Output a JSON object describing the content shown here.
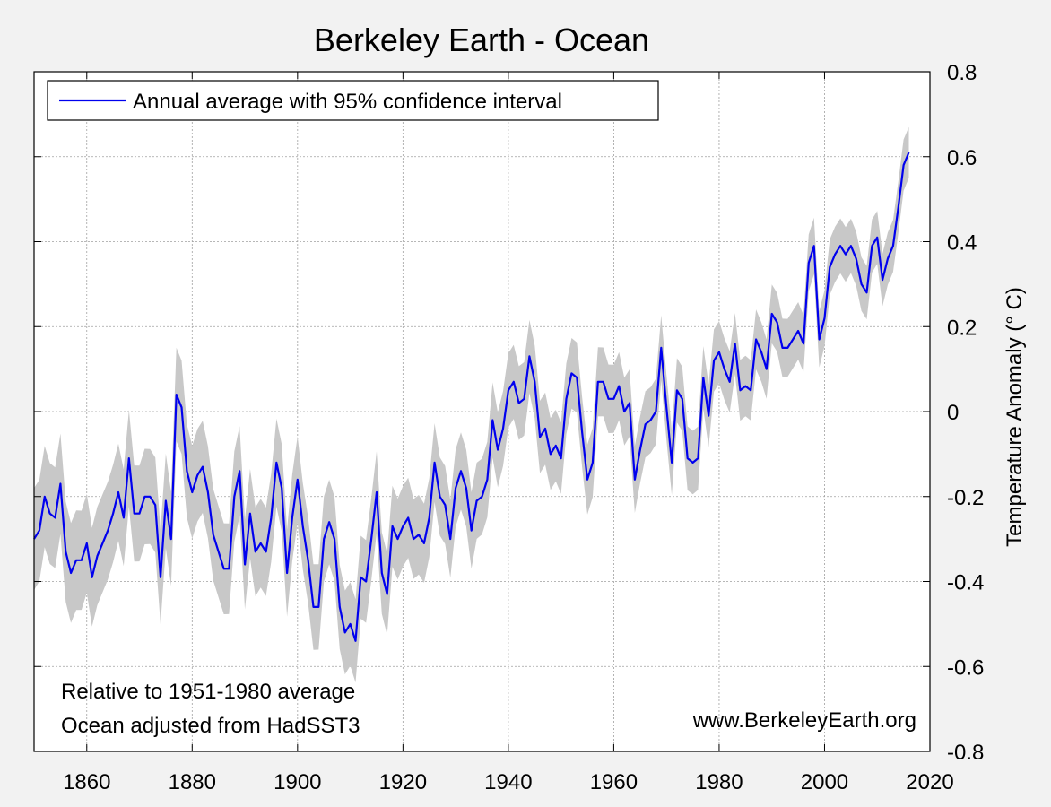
{
  "chart_data": {
    "type": "line",
    "title": "Berkeley Earth - Ocean",
    "xlabel": "",
    "ylabel": "Temperature Anomaly (° C)",
    "xlim": [
      1850,
      2020
    ],
    "ylim": [
      -0.8,
      0.8
    ],
    "x_ticks": [
      1860,
      1880,
      1900,
      1920,
      1940,
      1960,
      1980,
      2000,
      2020
    ],
    "y_ticks": [
      0.8,
      0.6,
      0.4,
      0.2,
      0,
      -0.2,
      -0.4,
      -0.6,
      -0.8
    ],
    "y_tick_labels": [
      "0.8",
      "0.6",
      "0.4",
      "0.2",
      "0",
      "-0.2",
      "-0.4",
      "-0.6",
      "-0.8"
    ],
    "grid": true,
    "legend": {
      "position": "top-left",
      "entries": [
        "Annual average with 95% confidence interval"
      ]
    },
    "annotations": {
      "relative": "Relative to 1951-1980 average",
      "source": "Ocean adjusted from HadSST3",
      "website": "www.BerkeleyEarth.org"
    },
    "colors": {
      "line": "#0000ee",
      "band": "#c8c8c8",
      "plot_bg": "#ffffff",
      "page_bg": "#f2f2f2",
      "grid": "#a0a0a0"
    },
    "series": [
      {
        "name": "Annual average with 95% confidence interval",
        "x_start": 1850,
        "x_step": 1,
        "values": [
          -0.3,
          -0.28,
          -0.2,
          -0.24,
          -0.25,
          -0.17,
          -0.33,
          -0.38,
          -0.35,
          -0.35,
          -0.31,
          -0.39,
          -0.34,
          -0.31,
          -0.28,
          -0.24,
          -0.19,
          -0.25,
          -0.11,
          -0.24,
          -0.24,
          -0.2,
          -0.2,
          -0.22,
          -0.39,
          -0.21,
          -0.3,
          0.04,
          0.01,
          -0.14,
          -0.19,
          -0.15,
          -0.13,
          -0.19,
          -0.29,
          -0.33,
          -0.37,
          -0.37,
          -0.2,
          -0.14,
          -0.36,
          -0.24,
          -0.33,
          -0.31,
          -0.33,
          -0.25,
          -0.12,
          -0.18,
          -0.38,
          -0.25,
          -0.16,
          -0.27,
          -0.35,
          -0.46,
          -0.46,
          -0.3,
          -0.26,
          -0.3,
          -0.46,
          -0.52,
          -0.5,
          -0.54,
          -0.39,
          -0.4,
          -0.3,
          -0.19,
          -0.38,
          -0.43,
          -0.27,
          -0.3,
          -0.27,
          -0.25,
          -0.3,
          -0.29,
          -0.31,
          -0.25,
          -0.12,
          -0.2,
          -0.22,
          -0.3,
          -0.18,
          -0.14,
          -0.18,
          -0.28,
          -0.21,
          -0.2,
          -0.16,
          -0.02,
          -0.09,
          -0.04,
          0.05,
          0.07,
          0.02,
          0.03,
          0.13,
          0.07,
          -0.06,
          -0.04,
          -0.1,
          -0.08,
          -0.11,
          0.03,
          0.09,
          0.08,
          -0.05,
          -0.16,
          -0.12,
          0.07,
          0.07,
          0.03,
          0.03,
          0.06,
          0.0,
          0.02,
          -0.16,
          -0.09,
          -0.03,
          -0.02,
          0.0,
          0.15,
          0.01,
          -0.12,
          0.05,
          0.03,
          -0.11,
          -0.12,
          -0.11,
          0.08,
          -0.01,
          0.12,
          0.14,
          0.1,
          0.07,
          0.16,
          0.05,
          0.06,
          0.05,
          0.17,
          0.14,
          0.1,
          0.23,
          0.21,
          0.15,
          0.15,
          0.17,
          0.19,
          0.16,
          0.35,
          0.39,
          0.17,
          0.22,
          0.34,
          0.37,
          0.39,
          0.37,
          0.39,
          0.36,
          0.3,
          0.28,
          0.39,
          0.41,
          0.31,
          0.36,
          0.39,
          0.48,
          0.58,
          0.61
        ],
        "ci_half_width_start": 0.12,
        "ci_half_width_end": 0.06
      }
    ]
  }
}
